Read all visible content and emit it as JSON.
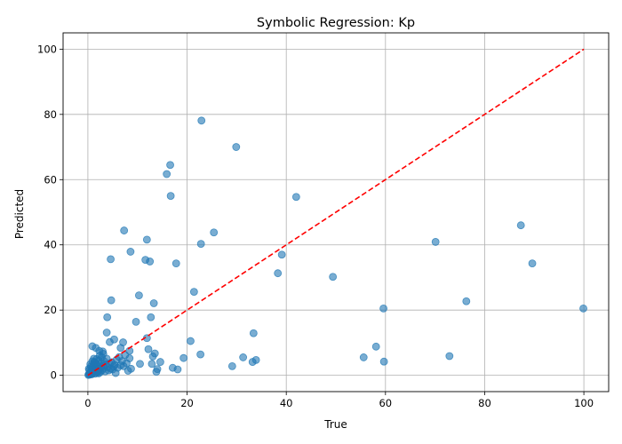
{
  "chart_data": {
    "type": "scatter",
    "title": "Symbolic Regression: Kp",
    "xlabel": "True",
    "ylabel": "Predicted",
    "xlim": [
      -5,
      105
    ],
    "ylim": [
      -5,
      105
    ],
    "xticks": [
      0,
      20,
      40,
      60,
      80,
      100
    ],
    "yticks": [
      0,
      20,
      40,
      60,
      80,
      100
    ],
    "grid": true,
    "colors": {
      "points": "#1f77b4",
      "reference": "#ff0000"
    },
    "reference_line": {
      "style": "dashed",
      "from": [
        0,
        0
      ],
      "to": [
        100,
        100
      ]
    },
    "points": [
      [
        0.1,
        0.1
      ],
      [
        0.2,
        0.3
      ],
      [
        0.3,
        0.6
      ],
      [
        0.4,
        0.2
      ],
      [
        0.5,
        0.9
      ],
      [
        0.6,
        1.3
      ],
      [
        0.7,
        0.4
      ],
      [
        0.8,
        1.8
      ],
      [
        0.9,
        2.3
      ],
      [
        1.0,
        0.7
      ],
      [
        1.1,
        3.2
      ],
      [
        1.2,
        1.1
      ],
      [
        1.3,
        4.1
      ],
      [
        1.4,
        2.6
      ],
      [
        1.5,
        0.5
      ],
      [
        1.6,
        1.9
      ],
      [
        1.7,
        3.5
      ],
      [
        1.8,
        5.0
      ],
      [
        1.9,
        0.8
      ],
      [
        2.0,
        2.9
      ],
      [
        2.1,
        1.4
      ],
      [
        2.2,
        4.6
      ],
      [
        2.3,
        2.1
      ],
      [
        2.4,
        6.1
      ],
      [
        2.5,
        1.0
      ],
      [
        2.6,
        3.8
      ],
      [
        2.7,
        2.4
      ],
      [
        2.8,
        5.5
      ],
      [
        2.9,
        1.6
      ],
      [
        3.0,
        7.3
      ],
      [
        3.1,
        3.0
      ],
      [
        3.2,
        2.2
      ],
      [
        3.3,
        4.3
      ],
      [
        3.5,
        1.2
      ],
      [
        3.6,
        3.3
      ],
      [
        3.8,
        5.1
      ],
      [
        4.0,
        2.5
      ],
      [
        4.2,
        1.5
      ],
      [
        4.4,
        3.6
      ],
      [
        4.6,
        2.0
      ],
      [
        4.8,
        4.0
      ],
      [
        5.0,
        1.8
      ],
      [
        5.2,
        2.7
      ],
      [
        5.4,
        3.2
      ],
      [
        5.6,
        0.7
      ],
      [
        5.8,
        4.8
      ],
      [
        6.0,
        2.3
      ],
      [
        6.3,
        5.6
      ],
      [
        6.6,
        3.1
      ],
      [
        6.9,
        4.4
      ],
      [
        7.2,
        2.8
      ],
      [
        7.5,
        6.2
      ],
      [
        7.8,
        3.7
      ],
      [
        8.1,
        1.4
      ],
      [
        8.4,
        5.2
      ],
      [
        8.7,
        2.0
      ],
      [
        0.3,
        1.6
      ],
      [
        0.6,
        2.7
      ],
      [
        0.9,
        4.3
      ],
      [
        1.2,
        5.1
      ],
      [
        0.5,
        3.4
      ],
      [
        1.6,
        0.9
      ],
      [
        2.2,
        0.6
      ],
      [
        1.4,
        3.9
      ],
      [
        0.8,
        0.3
      ],
      [
        0.2,
        2.0
      ],
      [
        0.9,
        8.9
      ],
      [
        1.6,
        8.4
      ],
      [
        2.3,
        7.5
      ],
      [
        3.1,
        6.6
      ],
      [
        3.8,
        13.1
      ],
      [
        3.9,
        17.8
      ],
      [
        4.4,
        10.2
      ],
      [
        4.6,
        35.6
      ],
      [
        4.7,
        23.0
      ],
      [
        5.3,
        11.0
      ],
      [
        6.6,
        8.4
      ],
      [
        7.1,
        10.1
      ],
      [
        7.3,
        44.4
      ],
      [
        8.4,
        7.5
      ],
      [
        8.6,
        37.9
      ],
      [
        9.7,
        16.4
      ],
      [
        10.3,
        24.5
      ],
      [
        11.6,
        35.4
      ],
      [
        11.9,
        41.6
      ],
      [
        12.2,
        8.0
      ],
      [
        12.5,
        34.9
      ],
      [
        12.7,
        17.8
      ],
      [
        13.1,
        5.8
      ],
      [
        13.3,
        22.1
      ],
      [
        13.5,
        6.7
      ],
      [
        13.8,
        1.1
      ],
      [
        14.0,
        1.9
      ],
      [
        12.9,
        3.5
      ],
      [
        10.5,
        3.5
      ],
      [
        11.9,
        11.4
      ],
      [
        14.6,
        4.1
      ],
      [
        15.9,
        61.7
      ],
      [
        16.6,
        64.5
      ],
      [
        16.7,
        55.0
      ],
      [
        17.1,
        2.3
      ],
      [
        17.8,
        34.3
      ],
      [
        18.1,
        1.8
      ],
      [
        19.3,
        5.3
      ],
      [
        20.7,
        10.5
      ],
      [
        21.4,
        25.6
      ],
      [
        22.7,
        6.4
      ],
      [
        22.8,
        40.3
      ],
      [
        22.9,
        78.1
      ],
      [
        25.4,
        43.8
      ],
      [
        29.1,
        2.8
      ],
      [
        29.9,
        70.0
      ],
      [
        31.3,
        5.5
      ],
      [
        33.2,
        4.1
      ],
      [
        33.4,
        12.9
      ],
      [
        33.9,
        4.7
      ],
      [
        38.3,
        31.3
      ],
      [
        39.1,
        37.0
      ],
      [
        42.0,
        54.7
      ],
      [
        49.4,
        30.2
      ],
      [
        55.6,
        5.5
      ],
      [
        58.1,
        8.8
      ],
      [
        59.6,
        20.5
      ],
      [
        59.7,
        4.2
      ],
      [
        70.1,
        40.9
      ],
      [
        72.9,
        5.9
      ],
      [
        76.3,
        22.7
      ],
      [
        87.3,
        46.0
      ],
      [
        89.6,
        34.3
      ],
      [
        99.9,
        20.5
      ]
    ]
  }
}
